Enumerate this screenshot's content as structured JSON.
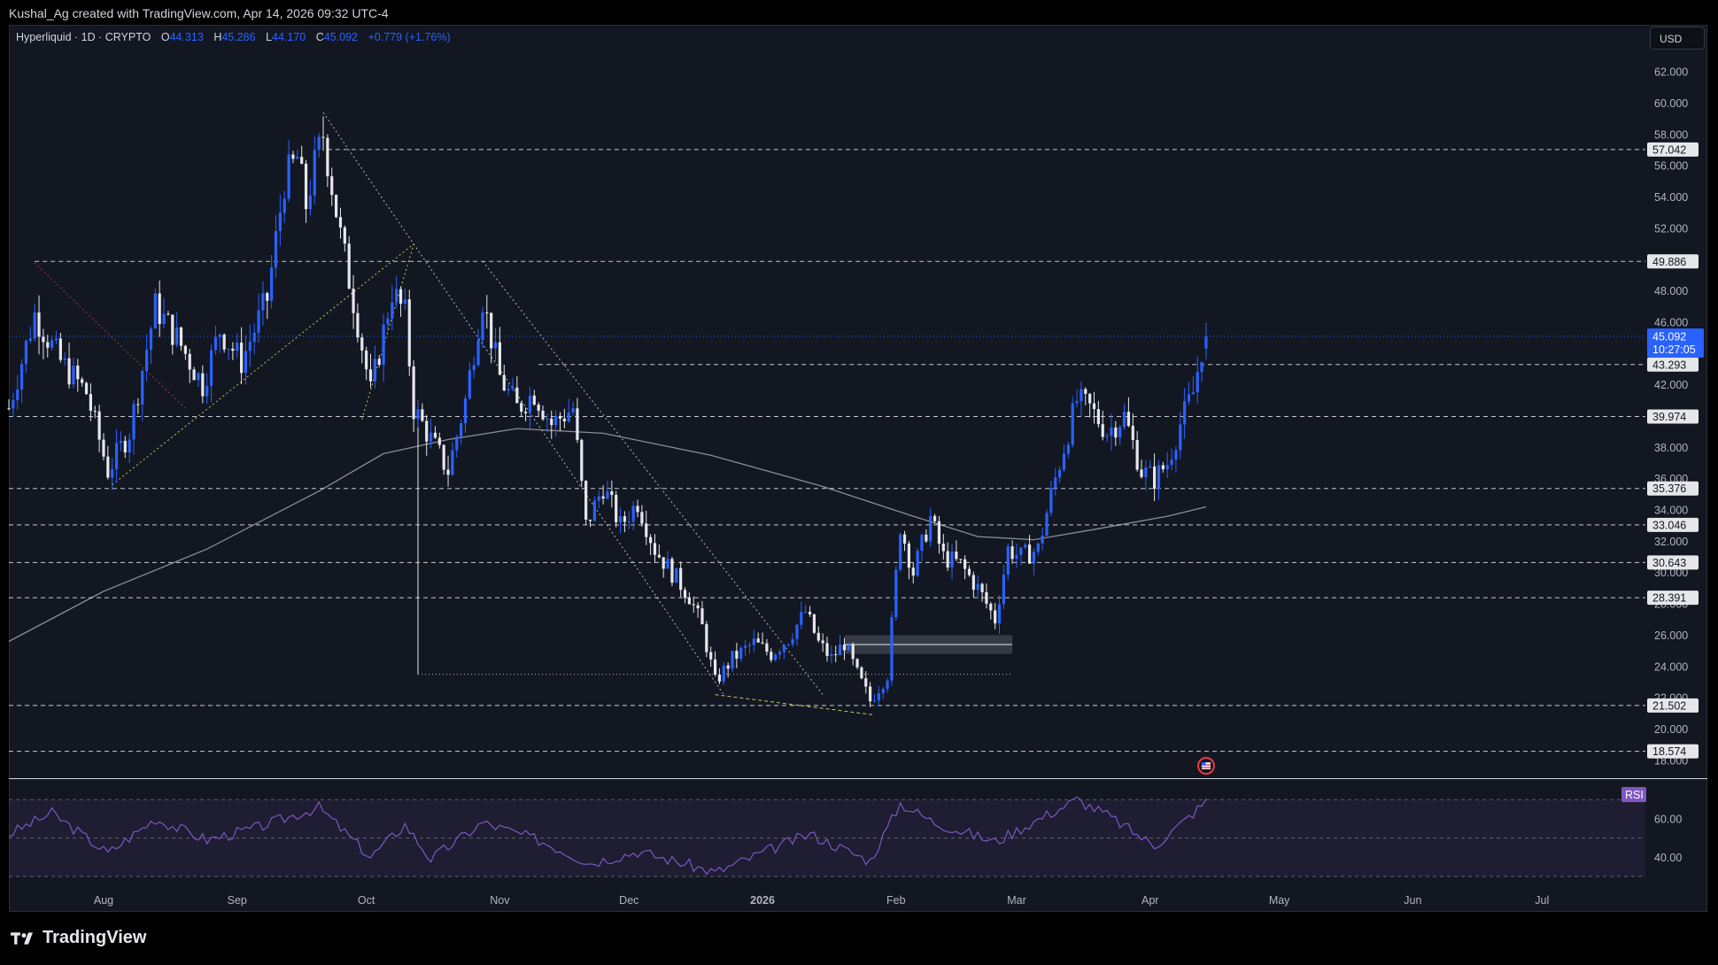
{
  "header": {
    "attribution": "Kushal_Ag created with TradingView.com, Apr 14, 2026 09:32 UTC-4"
  },
  "legend": {
    "symbol": "Hyperliquid · 1D · CRYPTO",
    "o_label": "O",
    "o_value": "44.313",
    "h_label": "H",
    "h_value": "45.286",
    "l_label": "L",
    "l_value": "44.170",
    "c_label": "C",
    "c_value": "45.092",
    "change": "+0.779 (+1.76%)"
  },
  "currency": "USD",
  "branding": "TradingView",
  "indicator_label": "RSI",
  "colors": {
    "background": "#131722",
    "bull": "#2962ff",
    "bear": "#e6e7ea",
    "ma": "#8a8d96",
    "rsi": "#7e57c2",
    "accent": "#2962ff"
  },
  "chart_data": [
    {
      "type": "candlestick",
      "title": "Hyperliquid · 1D · CRYPTO",
      "x_axis": {
        "type": "date",
        "tick_labels": [
          "Aug",
          "Sep",
          "Oct",
          "Nov",
          "Dec",
          "2026",
          "Feb",
          "Mar",
          "Apr",
          "May",
          "Jun",
          "Jul"
        ],
        "range": [
          "2025-07-10",
          "2026-07-25"
        ]
      },
      "y_axis": {
        "range": [
          16.8,
          63.2
        ],
        "tick_labels": [
          "18.000",
          "20.000",
          "22.000",
          "24.000",
          "26.000",
          "28.000",
          "30.000",
          "32.000",
          "34.000",
          "36.000",
          "38.000",
          "40.000",
          "42.000",
          "44.000",
          "46.000",
          "48.000",
          "50.000",
          "52.000",
          "54.000",
          "56.000",
          "58.000",
          "60.000",
          "62.000"
        ]
      },
      "last_price": {
        "value": "45.092",
        "countdown": "10:27:05"
      },
      "horizontal_levels": [
        "57.042",
        "49.886",
        "43.293",
        "39.974",
        "35.376",
        "33.046",
        "30.643",
        "28.391",
        "21.502",
        "18.574"
      ],
      "price_path": [
        {
          "date": "2025-07-10",
          "price": 40.5
        },
        {
          "date": "2025-07-16",
          "price": 46.5
        },
        {
          "date": "2025-07-22",
          "price": 43.5
        },
        {
          "date": "2025-07-28",
          "price": 41.5
        },
        {
          "date": "2025-08-02",
          "price": 36.5
        },
        {
          "date": "2025-08-07",
          "price": 39.0
        },
        {
          "date": "2025-08-13",
          "price": 47.0
        },
        {
          "date": "2025-08-18",
          "price": 45.0
        },
        {
          "date": "2025-08-24",
          "price": 42.0
        },
        {
          "date": "2025-08-28",
          "price": 45.5
        },
        {
          "date": "2025-09-02",
          "price": 43.5
        },
        {
          "date": "2025-09-08",
          "price": 47.5
        },
        {
          "date": "2025-09-12",
          "price": 55.0
        },
        {
          "date": "2025-09-15",
          "price": 56.5
        },
        {
          "date": "2025-09-17",
          "price": 53.5
        },
        {
          "date": "2025-09-19",
          "price": 56.0
        },
        {
          "date": "2025-09-21",
          "price": 58.0
        },
        {
          "date": "2025-09-25",
          "price": 51.5
        },
        {
          "date": "2025-09-29",
          "price": 46.0
        },
        {
          "date": "2025-10-02",
          "price": 41.5
        },
        {
          "date": "2025-10-07",
          "price": 48.0
        },
        {
          "date": "2025-10-10",
          "price": 46.5
        },
        {
          "date": "2025-10-12",
          "price": 40.5
        },
        {
          "date": "2025-10-16",
          "price": 38.5
        },
        {
          "date": "2025-10-20",
          "price": 36.5
        },
        {
          "date": "2025-10-24",
          "price": 41.0
        },
        {
          "date": "2025-10-28",
          "price": 47.5
        },
        {
          "date": "2025-11-01",
          "price": 42.5
        },
        {
          "date": "2025-11-05",
          "price": 40.5
        },
        {
          "date": "2025-11-09",
          "price": 41.5
        },
        {
          "date": "2025-11-13",
          "price": 39.5
        },
        {
          "date": "2025-11-18",
          "price": 40.5
        },
        {
          "date": "2025-11-21",
          "price": 33.0
        },
        {
          "date": "2025-11-25",
          "price": 35.5
        },
        {
          "date": "2025-11-29",
          "price": 33.0
        },
        {
          "date": "2025-12-03",
          "price": 34.5
        },
        {
          "date": "2025-12-07",
          "price": 31.5
        },
        {
          "date": "2025-12-11",
          "price": 30.0
        },
        {
          "date": "2025-12-15",
          "price": 28.5
        },
        {
          "date": "2025-12-18",
          "price": 26.5
        },
        {
          "date": "2025-12-21",
          "price": 23.0
        },
        {
          "date": "2025-12-25",
          "price": 24.5
        },
        {
          "date": "2025-12-30",
          "price": 25.5
        },
        {
          "date": "2026-01-03",
          "price": 24.8
        },
        {
          "date": "2026-01-07",
          "price": 25.8
        },
        {
          "date": "2026-01-11",
          "price": 27.5
        },
        {
          "date": "2026-01-14",
          "price": 25.5
        },
        {
          "date": "2026-01-17",
          "price": 24.5
        },
        {
          "date": "2026-01-20",
          "price": 25.5
        },
        {
          "date": "2026-01-23",
          "price": 23.5
        },
        {
          "date": "2026-01-26",
          "price": 21.8
        },
        {
          "date": "2026-01-30",
          "price": 23.5
        },
        {
          "date": "2026-02-02",
          "price": 33.0
        },
        {
          "date": "2026-02-05",
          "price": 30.0
        },
        {
          "date": "2026-02-09",
          "price": 33.5
        },
        {
          "date": "2026-02-12",
          "price": 31.0
        },
        {
          "date": "2026-02-16",
          "price": 30.5
        },
        {
          "date": "2026-02-20",
          "price": 29.0
        },
        {
          "date": "2026-02-24",
          "price": 27.0
        },
        {
          "date": "2026-02-27",
          "price": 31.5
        },
        {
          "date": "2026-03-02",
          "price": 31.0
        },
        {
          "date": "2026-03-06",
          "price": 31.5
        },
        {
          "date": "2026-03-09",
          "price": 35.0
        },
        {
          "date": "2026-03-12",
          "price": 38.0
        },
        {
          "date": "2026-03-15",
          "price": 41.0
        },
        {
          "date": "2026-03-18",
          "price": 40.5
        },
        {
          "date": "2026-03-22",
          "price": 39.0
        },
        {
          "date": "2026-03-26",
          "price": 40.0
        },
        {
          "date": "2026-03-30",
          "price": 36.5
        },
        {
          "date": "2026-04-02",
          "price": 36.0
        },
        {
          "date": "2026-04-05",
          "price": 37.0
        },
        {
          "date": "2026-04-08",
          "price": 39.5
        },
        {
          "date": "2026-04-11",
          "price": 41.5
        },
        {
          "date": "2026-04-13",
          "price": 44.3
        },
        {
          "date": "2026-04-14",
          "price": 45.09
        }
      ],
      "moving_average": [
        {
          "date": "2025-07-10",
          "value": 25.6
        },
        {
          "date": "2025-08-01",
          "value": 28.8
        },
        {
          "date": "2025-08-25",
          "value": 31.5
        },
        {
          "date": "2025-09-20",
          "value": 35.2
        },
        {
          "date": "2025-10-05",
          "value": 37.6
        },
        {
          "date": "2025-10-20",
          "value": 38.5
        },
        {
          "date": "2025-11-05",
          "value": 39.2
        },
        {
          "date": "2025-11-25",
          "value": 38.9
        },
        {
          "date": "2025-12-20",
          "value": 37.5
        },
        {
          "date": "2026-01-15",
          "value": 35.5
        },
        {
          "date": "2026-02-05",
          "value": 33.6
        },
        {
          "date": "2026-02-20",
          "value": 32.3
        },
        {
          "date": "2026-03-05",
          "value": 32.1
        },
        {
          "date": "2026-03-20",
          "value": 32.8
        },
        {
          "date": "2026-04-05",
          "value": 33.6
        },
        {
          "date": "2026-04-14",
          "value": 34.2
        }
      ]
    },
    {
      "type": "line",
      "title": "RSI",
      "y_axis": {
        "range": [
          30,
          77
        ],
        "tick_labels": [
          "40.00",
          "60.00"
        ],
        "bands": [
          70,
          50,
          30
        ]
      },
      "values": [
        {
          "date": "2025-07-10",
          "value": 52
        },
        {
          "date": "2025-07-20",
          "value": 63
        },
        {
          "date": "2025-08-02",
          "value": 42
        },
        {
          "date": "2025-08-13",
          "value": 60
        },
        {
          "date": "2025-08-25",
          "value": 49
        },
        {
          "date": "2025-09-05",
          "value": 55
        },
        {
          "date": "2025-09-20",
          "value": 66
        },
        {
          "date": "2025-10-02",
          "value": 40
        },
        {
          "date": "2025-10-10",
          "value": 57
        },
        {
          "date": "2025-10-16",
          "value": 39
        },
        {
          "date": "2025-10-28",
          "value": 58
        },
        {
          "date": "2025-11-10",
          "value": 49
        },
        {
          "date": "2025-11-22",
          "value": 37
        },
        {
          "date": "2025-12-03",
          "value": 43
        },
        {
          "date": "2025-12-15",
          "value": 36
        },
        {
          "date": "2025-12-21",
          "value": 32
        },
        {
          "date": "2026-01-05",
          "value": 46
        },
        {
          "date": "2026-01-12",
          "value": 52
        },
        {
          "date": "2026-01-26",
          "value": 38
        },
        {
          "date": "2026-02-02",
          "value": 68
        },
        {
          "date": "2026-02-10",
          "value": 58
        },
        {
          "date": "2026-02-24",
          "value": 48
        },
        {
          "date": "2026-03-02",
          "value": 55
        },
        {
          "date": "2026-03-15",
          "value": 70
        },
        {
          "date": "2026-03-22",
          "value": 62
        },
        {
          "date": "2026-04-02",
          "value": 46
        },
        {
          "date": "2026-04-08",
          "value": 57
        },
        {
          "date": "2026-04-14",
          "value": 69
        }
      ]
    }
  ]
}
